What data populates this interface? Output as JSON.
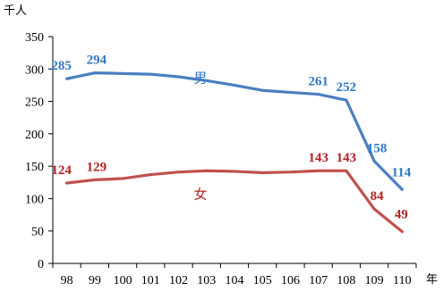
{
  "chart_data": {
    "type": "line",
    "y_unit": "千人",
    "x_unit": "年",
    "categories": [
      "98",
      "99",
      "100",
      "101",
      "102",
      "103",
      "104",
      "105",
      "106",
      "107",
      "108",
      "109",
      "110"
    ],
    "ylim": [
      0,
      350
    ],
    "yticks": [
      0,
      50,
      100,
      150,
      200,
      250,
      300,
      350
    ],
    "grid": false,
    "series": [
      {
        "name": "男",
        "color": "#4a7fc1",
        "label_color": "#2f78c4",
        "values": [
          285,
          294,
          293,
          292,
          288,
          282,
          275,
          267,
          264,
          261,
          252,
          158,
          114
        ],
        "labels": [
          "285",
          "294",
          "",
          "",
          "",
          "",
          "",
          "",
          "",
          "261",
          "252",
          "158",
          "114"
        ]
      },
      {
        "name": "女",
        "color": "#c0504d",
        "label_color": "#b22222",
        "values": [
          124,
          129,
          131,
          137,
          141,
          143,
          142,
          140,
          141,
          143,
          143,
          84,
          49
        ],
        "labels": [
          "124",
          "129",
          "",
          "",
          "",
          "",
          "",
          "",
          "",
          "143",
          "143",
          "84",
          "49"
        ]
      }
    ]
  }
}
